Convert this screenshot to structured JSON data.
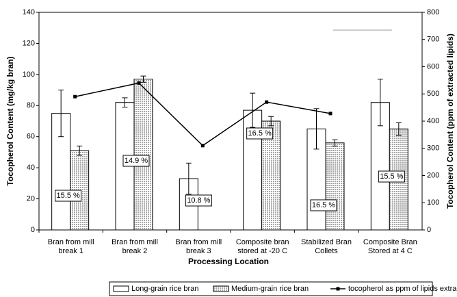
{
  "chart_data": {
    "type": "bar",
    "categories": [
      [
        "Bran from mill",
        "break 1"
      ],
      [
        "Bran from mill",
        "break 2"
      ],
      [
        "Bran from mill",
        "break 3"
      ],
      [
        "Composite bran",
        "stored at -20 C"
      ],
      [
        "Stabilized Bran",
        "Collets"
      ],
      [
        "Composite Bran",
        "Stored at 4 C"
      ]
    ],
    "series": [
      {
        "name": "Long-grain rice bran",
        "color": "#ffffff",
        "values": [
          75,
          82,
          33,
          77,
          65,
          82
        ],
        "errors": [
          15,
          3,
          10,
          11,
          13,
          15
        ]
      },
      {
        "name": "Medium-grain rice bran",
        "color": "#a8a8a8",
        "values": [
          51,
          97,
          null,
          70,
          56,
          65
        ],
        "errors": [
          3,
          2,
          null,
          3,
          2,
          4
        ]
      },
      {
        "name": "tocopherol as ppm of lipids extracted",
        "type": "line",
        "axis": "y2",
        "color": "#000000",
        "values": [
          490,
          540,
          310,
          470,
          428,
          null
        ]
      }
    ],
    "annotations": [
      "15.5 %",
      "14.9 %",
      "10.8 %",
      "16.5 %",
      "16.5 %",
      "15.5 %"
    ],
    "xlabel": "Processing Location",
    "ylabel": "Tocopherol Content (mg/kg bran)",
    "y2label": "Tocopherol Content (ppm of extracted lipids)",
    "ylim": [
      0,
      140
    ],
    "yticks": [
      0,
      20,
      40,
      60,
      80,
      100,
      120,
      140
    ],
    "y2lim": [
      0,
      800
    ],
    "y2ticks": [
      0,
      100,
      200,
      300,
      400,
      500,
      600,
      700,
      800
    ]
  }
}
